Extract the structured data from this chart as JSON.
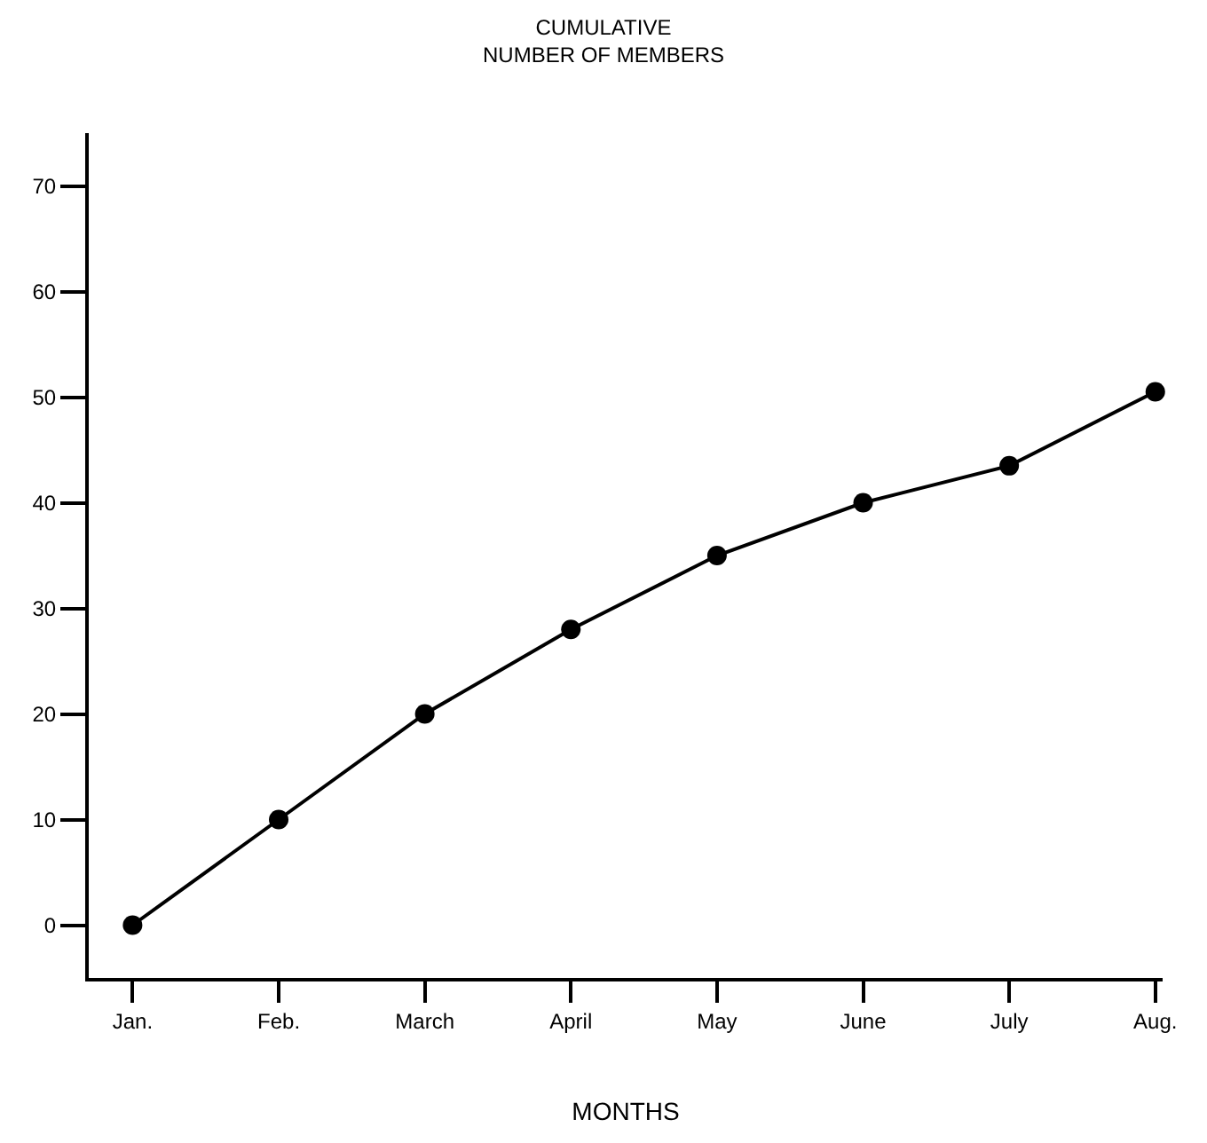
{
  "chart_data": {
    "type": "line",
    "title": "CUMULATIVE\nNUMBER OF MEMBERS",
    "xlabel": "MONTHS",
    "categories": [
      "Jan.",
      "Feb.",
      "March",
      "April",
      "May",
      "June",
      "July",
      "Aug."
    ],
    "series": [
      {
        "color": "#000000",
        "values": [
          0,
          10,
          20,
          28,
          35,
          40,
          43.5,
          50.5
        ]
      }
    ],
    "ylim": [
      -5,
      75
    ],
    "yticks": [
      0,
      10,
      20,
      30,
      40,
      50,
      60,
      70
    ],
    "marker": "circle",
    "line_style": "solid"
  }
}
